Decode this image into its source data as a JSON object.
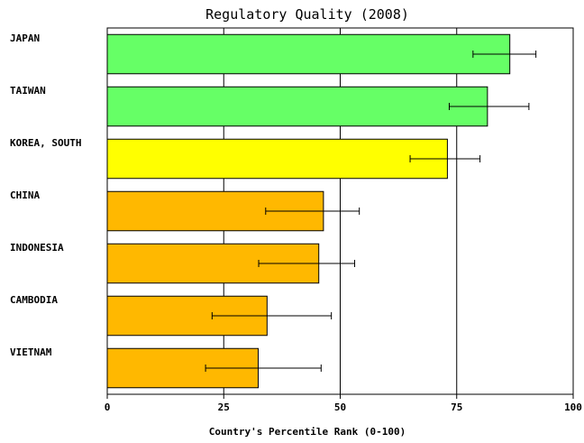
{
  "chart_data": {
    "type": "bar",
    "orientation": "horizontal",
    "title": "Regulatory Quality (2008)",
    "xlabel": "Country's Percentile Rank (0-100)",
    "ylabel": "",
    "xlim": [
      0,
      100
    ],
    "x_ticks": [
      "0",
      "25",
      "50",
      "75",
      "100"
    ],
    "grid": "vertical lines at 25, 50, 75",
    "categories": [
      "JAPAN",
      "TAIWAN",
      "KOREA, SOUTH",
      "CHINA",
      "INDONESIA",
      "CAMBODIA",
      "VIETNAM"
    ],
    "values": [
      86.4,
      81.6,
      73.0,
      46.4,
      45.4,
      34.3,
      32.4
    ],
    "error_low": [
      78.5,
      73.4,
      65.0,
      34.0,
      32.5,
      22.5,
      21.1
    ],
    "error_high": [
      92.0,
      90.5,
      80.0,
      54.1,
      53.1,
      48.1,
      45.9
    ],
    "colors": [
      "#66ff66",
      "#66ff66",
      "#ffff00",
      "#ffb800",
      "#ffb800",
      "#ffb800",
      "#ffb800"
    ]
  }
}
